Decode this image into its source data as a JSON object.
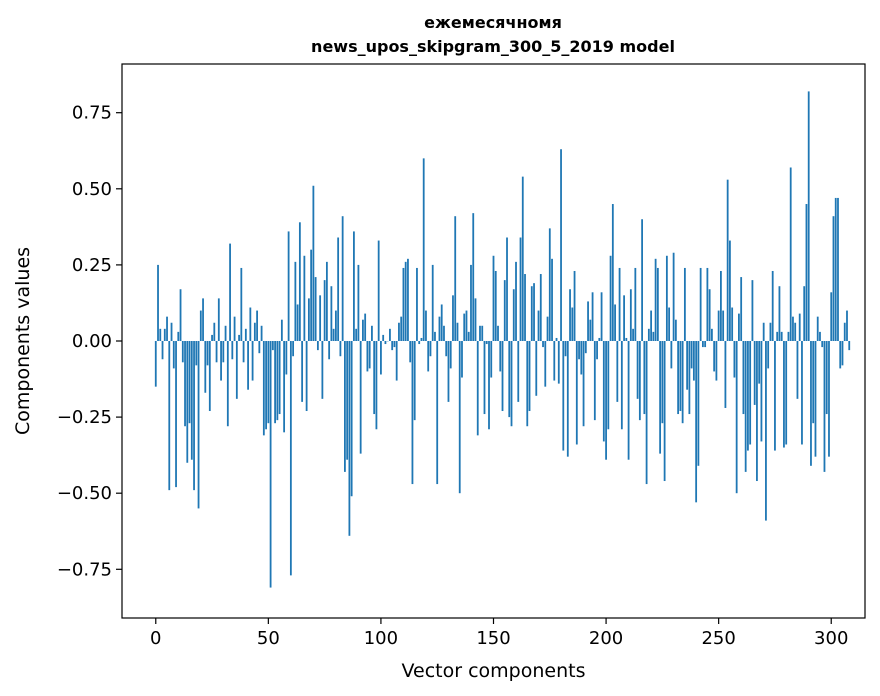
{
  "chart_data": {
    "type": "bar",
    "title_line1": "ежемесячномя",
    "title_line2": "news_upos_skipgram_300_5_2019 model",
    "xlabel": "Vector components",
    "ylabel": "Components values",
    "xlim": [
      -15,
      315
    ],
    "ylim": [
      -0.91,
      0.91
    ],
    "xticks": [
      0,
      50,
      100,
      150,
      200,
      250,
      300
    ],
    "xtick_labels": [
      "0",
      "50",
      "100",
      "150",
      "200",
      "250",
      "300"
    ],
    "yticks": [
      -0.75,
      -0.5,
      -0.25,
      0.0,
      0.25,
      0.5,
      0.75
    ],
    "ytick_labels": [
      "−0.75",
      "−0.50",
      "−0.25",
      "0.00",
      "0.25",
      "0.50",
      "0.75"
    ],
    "bar_color": "#1f77b4",
    "values": [
      -0.15,
      0.25,
      0.04,
      -0.06,
      0.04,
      0.08,
      -0.49,
      0.06,
      -0.09,
      -0.48,
      0.03,
      0.17,
      -0.07,
      -0.28,
      -0.4,
      -0.27,
      -0.39,
      -0.49,
      -0.08,
      -0.55,
      0.1,
      0.14,
      -0.17,
      -0.08,
      -0.23,
      0.02,
      0.06,
      -0.07,
      0.14,
      -0.13,
      -0.07,
      0.05,
      -0.28,
      0.32,
      -0.06,
      0.08,
      -0.19,
      0.02,
      0.24,
      -0.07,
      0.04,
      -0.16,
      0.11,
      -0.13,
      0.06,
      0.1,
      -0.04,
      0.05,
      -0.31,
      -0.29,
      -0.27,
      -0.81,
      -0.03,
      -0.27,
      -0.26,
      -0.24,
      0.07,
      -0.3,
      -0.11,
      0.36,
      -0.77,
      -0.05,
      0.26,
      0.12,
      0.39,
      -0.2,
      0.28,
      -0.23,
      0.14,
      0.3,
      0.51,
      0.21,
      -0.03,
      0.15,
      -0.19,
      0.2,
      0.26,
      -0.06,
      0.18,
      0.04,
      0.1,
      0.34,
      -0.05,
      0.41,
      -0.43,
      -0.39,
      -0.64,
      -0.51,
      0.36,
      0.04,
      0.25,
      -0.37,
      0.07,
      0.09,
      -0.1,
      -0.09,
      0.05,
      -0.24,
      -0.29,
      0.33,
      -0.11,
      0.02,
      -0.01,
      0.0,
      0.04,
      -0.03,
      -0.02,
      -0.13,
      0.06,
      0.08,
      0.24,
      0.26,
      0.27,
      -0.07,
      -0.47,
      -0.26,
      0.24,
      -0.01,
      0.01,
      0.6,
      0.1,
      -0.1,
      -0.05,
      0.25,
      0.03,
      -0.47,
      0.08,
      0.12,
      0.05,
      -0.05,
      -0.2,
      -0.09,
      0.15,
      0.41,
      0.06,
      -0.5,
      -0.12,
      0.09,
      0.1,
      0.03,
      0.25,
      0.42,
      0.14,
      -0.31,
      0.05,
      0.05,
      -0.24,
      -0.01,
      -0.29,
      -0.12,
      0.28,
      0.23,
      0.05,
      -0.1,
      -0.23,
      0.2,
      0.34,
      -0.25,
      -0.28,
      0.17,
      0.26,
      -0.2,
      0.34,
      0.54,
      0.22,
      -0.28,
      -0.23,
      0.18,
      0.19,
      -0.18,
      0.1,
      0.22,
      -0.02,
      -0.15,
      0.08,
      0.37,
      0.27,
      -0.13,
      0.01,
      -0.14,
      0.63,
      -0.36,
      -0.05,
      -0.38,
      0.17,
      0.11,
      0.23,
      -0.34,
      -0.06,
      -0.11,
      -0.28,
      -0.04,
      0.13,
      0.07,
      0.16,
      -0.26,
      -0.06,
      0.01,
      0.16,
      -0.33,
      -0.39,
      -0.29,
      0.28,
      0.45,
      0.12,
      -0.2,
      0.24,
      -0.29,
      0.15,
      0.01,
      -0.39,
      0.17,
      0.04,
      0.24,
      -0.19,
      -0.26,
      0.4,
      -0.24,
      -0.47,
      0.04,
      0.1,
      0.03,
      0.27,
      0.24,
      -0.37,
      -0.27,
      -0.46,
      0.28,
      0.11,
      -0.09,
      0.29,
      0.07,
      -0.24,
      -0.23,
      -0.27,
      0.24,
      -0.16,
      -0.24,
      -0.09,
      -0.13,
      -0.53,
      -0.41,
      0.24,
      -0.02,
      -0.02,
      0.24,
      0.17,
      0.04,
      -0.1,
      -0.13,
      0.1,
      0.23,
      0.1,
      -0.22,
      0.53,
      0.33,
      0.11,
      -0.12,
      -0.5,
      0.09,
      0.21,
      -0.24,
      -0.43,
      -0.36,
      -0.34,
      0.2,
      -0.21,
      -0.46,
      -0.14,
      -0.33,
      0.06,
      -0.59,
      -0.09,
      0.06,
      0.23,
      -0.36,
      0.03,
      0.18,
      0.03,
      -0.35,
      -0.34,
      0.03,
      0.57,
      0.08,
      0.06,
      -0.19,
      0.09,
      -0.34,
      0.18,
      0.45,
      0.82,
      -0.41,
      -0.27,
      -0.38,
      0.08,
      0.03,
      -0.02,
      -0.43,
      -0.24,
      -0.38,
      0.16,
      0.41,
      0.47,
      0.47,
      -0.09,
      -0.08,
      0.06,
      0.1,
      -0.03
    ]
  }
}
